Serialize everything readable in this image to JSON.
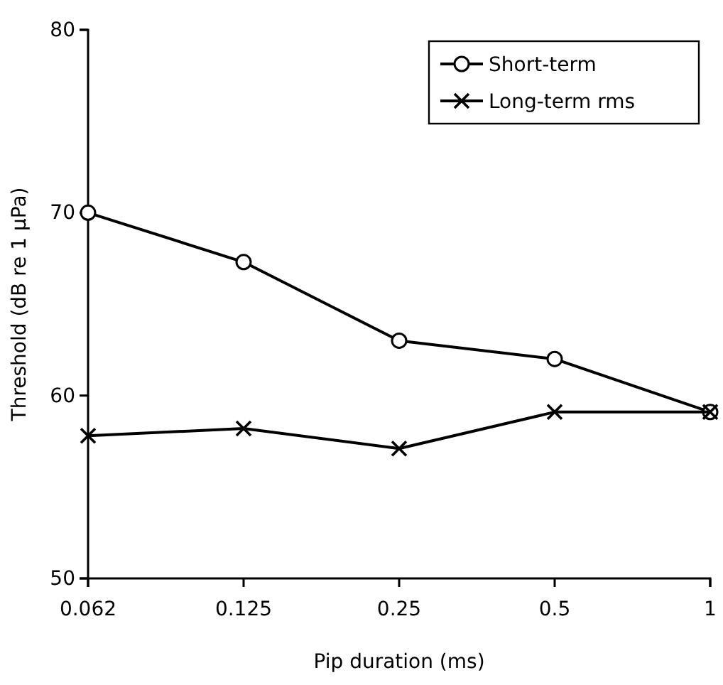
{
  "chart_data": {
    "type": "line",
    "xlabel": "Pip duration (ms)",
    "ylabel": "Threshold (dB re 1 µPa)",
    "categories": [
      "0.062",
      "0.125",
      "0.25",
      "0.5",
      "1"
    ],
    "ylim": [
      50,
      80
    ],
    "yticks": [
      50,
      60,
      70,
      80
    ],
    "grid": false,
    "legend": "top right",
    "line_style": "solid",
    "series": [
      {
        "name": "Short-term",
        "color": "#000000",
        "marker": "circle",
        "values": [
          70,
          67.3,
          63,
          62,
          59.1
        ]
      },
      {
        "name": "Long-term rms",
        "color": "#000000",
        "marker": "cross",
        "values": [
          57.8,
          58.2,
          57.1,
          59.1,
          59.1
        ]
      }
    ]
  }
}
